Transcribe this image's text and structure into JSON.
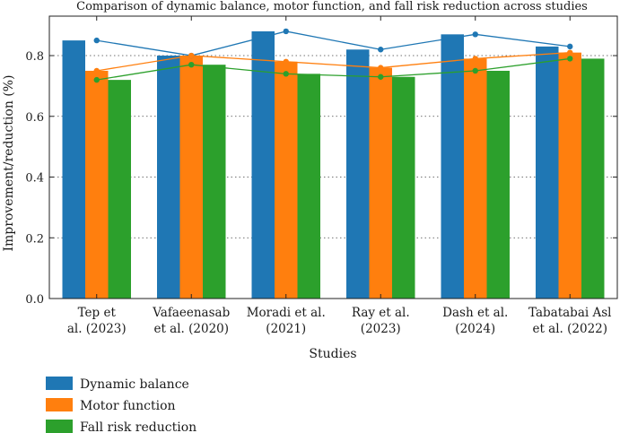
{
  "chart_data": {
    "type": "bar",
    "title": "Comparison of dynamic balance, motor function, and fall risk reduction across studies",
    "xlabel": "Studies",
    "ylabel": "Improvement/reduction (%)",
    "ylim": [
      0,
      0.93
    ],
    "yticks": [
      "0.0",
      "0.2",
      "0.4",
      "0.6",
      "0.8"
    ],
    "grid": "dotted",
    "legend_position": "bottom-left",
    "categories": [
      [
        "Tep et",
        "al. (2023)"
      ],
      [
        "Vafaeenasab",
        "et al. (2020)"
      ],
      [
        "Moradi et al.",
        "(2021)"
      ],
      [
        "Ray et al.",
        "(2023)"
      ],
      [
        "Dash et al.",
        "(2024)"
      ],
      [
        "Tabatabai Asl",
        "et al. (2022)"
      ]
    ],
    "series": [
      {
        "name": "Dynamic balance",
        "color": "#1f77b4",
        "values": [
          0.85,
          0.8,
          0.88,
          0.82,
          0.87,
          0.83
        ]
      },
      {
        "name": "Motor function",
        "color": "#ff7f0e",
        "values": [
          0.75,
          0.8,
          0.78,
          0.76,
          0.79,
          0.81
        ]
      },
      {
        "name": "Fall risk reduction",
        "color": "#2ca02c",
        "values": [
          0.72,
          0.77,
          0.74,
          0.73,
          0.75,
          0.79
        ]
      }
    ],
    "overlay_lines": "each series also drawn as a line with circular markers at the bar tops"
  }
}
